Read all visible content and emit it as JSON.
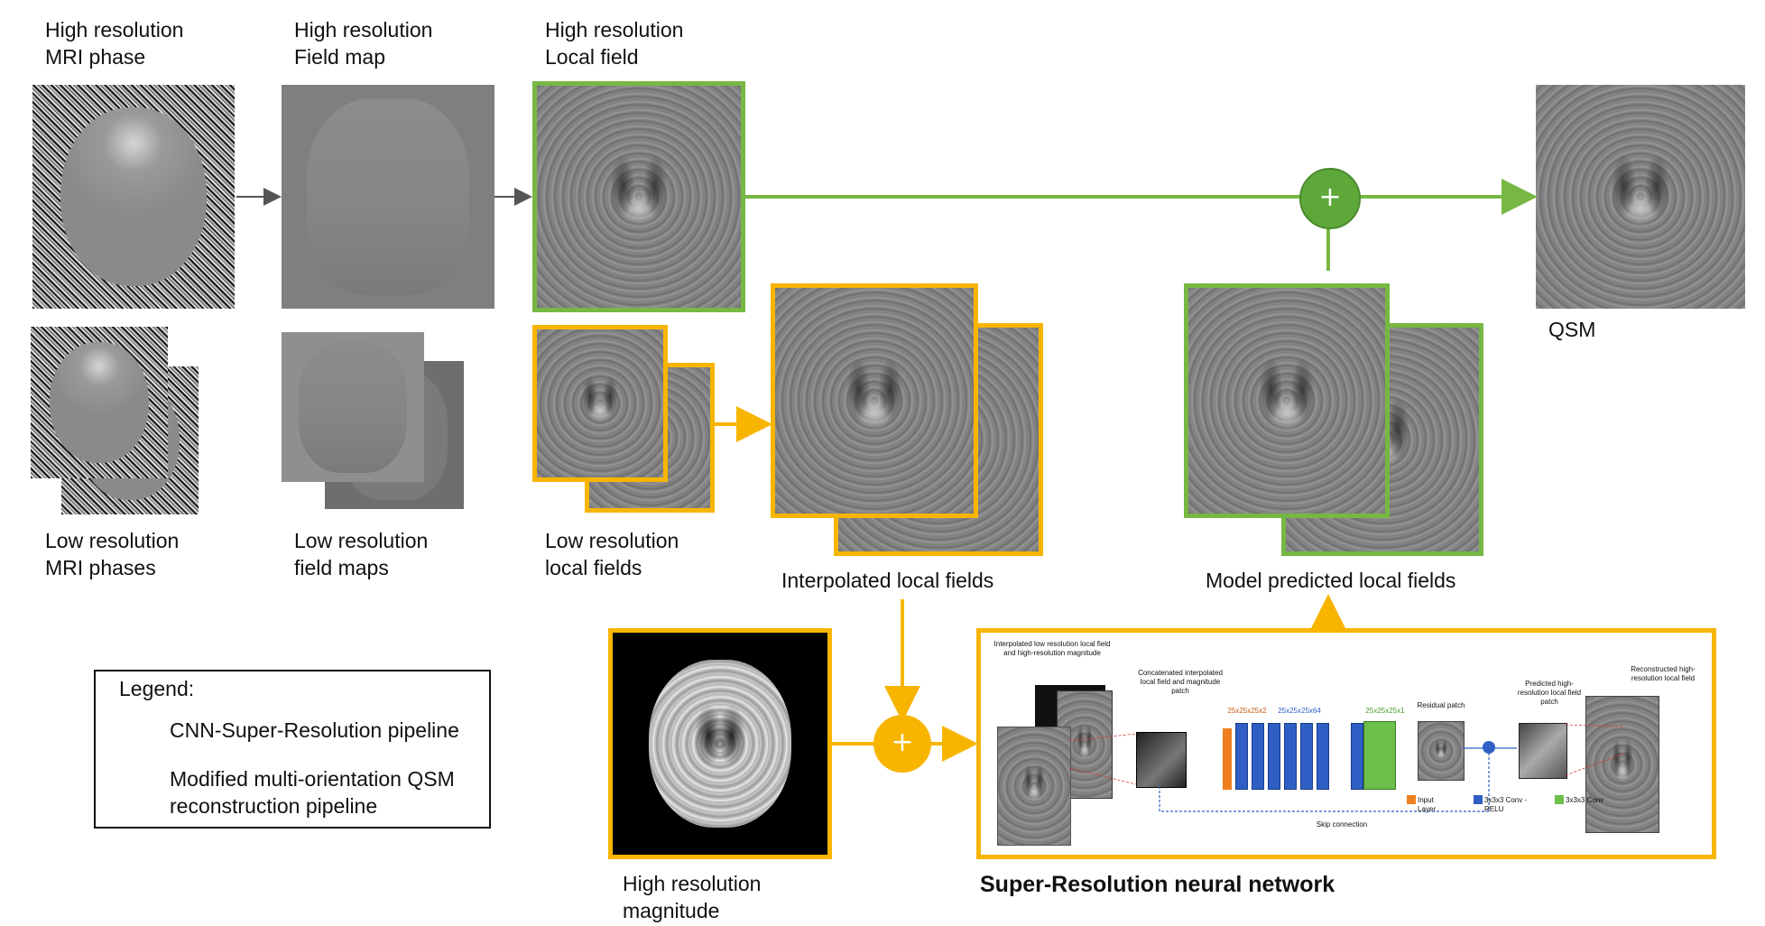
{
  "labels": {
    "hr_phase": "High resolution\nMRI phase",
    "hr_field": "High resolution\nField map",
    "hr_local": "High resolution\nLocal field",
    "lr_phases": "Low resolution\nMRI phases",
    "lr_fields": "Low resolution\nfield maps",
    "lr_local": "Low resolution\nlocal fields",
    "interp": "Interpolated local fields",
    "model_pred": "Model predicted local fields",
    "qsm": "QSM",
    "hr_magnitude": "High resolution\nmagnitude",
    "sr_title": "Super-Resolution neural network"
  },
  "legend": {
    "title": "Legend:",
    "items": [
      {
        "label": "CNN-Super-Resolution pipeline",
        "color": "#f7b500"
      },
      {
        "label": "Modified multi-orientation QSM\nreconstruction pipeline",
        "color": "#76b843"
      }
    ]
  },
  "network": {
    "input_caption": "Interpolated low resolution  local\nfield and high-resolution\nmagnitude",
    "concat_caption": "Concatenated interpolated\nlocal field and magnitude\npatch",
    "dim1": "25x25x25x2",
    "dim2": "25x25x25x64",
    "dim3": "25x25x25x1",
    "residual": "Residual patch",
    "predicted": "Predicted high-\nresolution local field\npatch",
    "reconstructed": "Reconstructed high-\nresolution local field",
    "skip": "Skip connection",
    "legend": [
      "Input Layer",
      "3x3x3 Conv - RELU",
      "3x3x3 Conv"
    ]
  },
  "operators": {
    "plus": "+"
  },
  "colors": {
    "yellow": "#f7b500",
    "green": "#76b843",
    "orange": "#f07f1f",
    "blue": "#2f5fc4",
    "conv_green": "#6cc04a",
    "gray_arrow": "#555555"
  }
}
